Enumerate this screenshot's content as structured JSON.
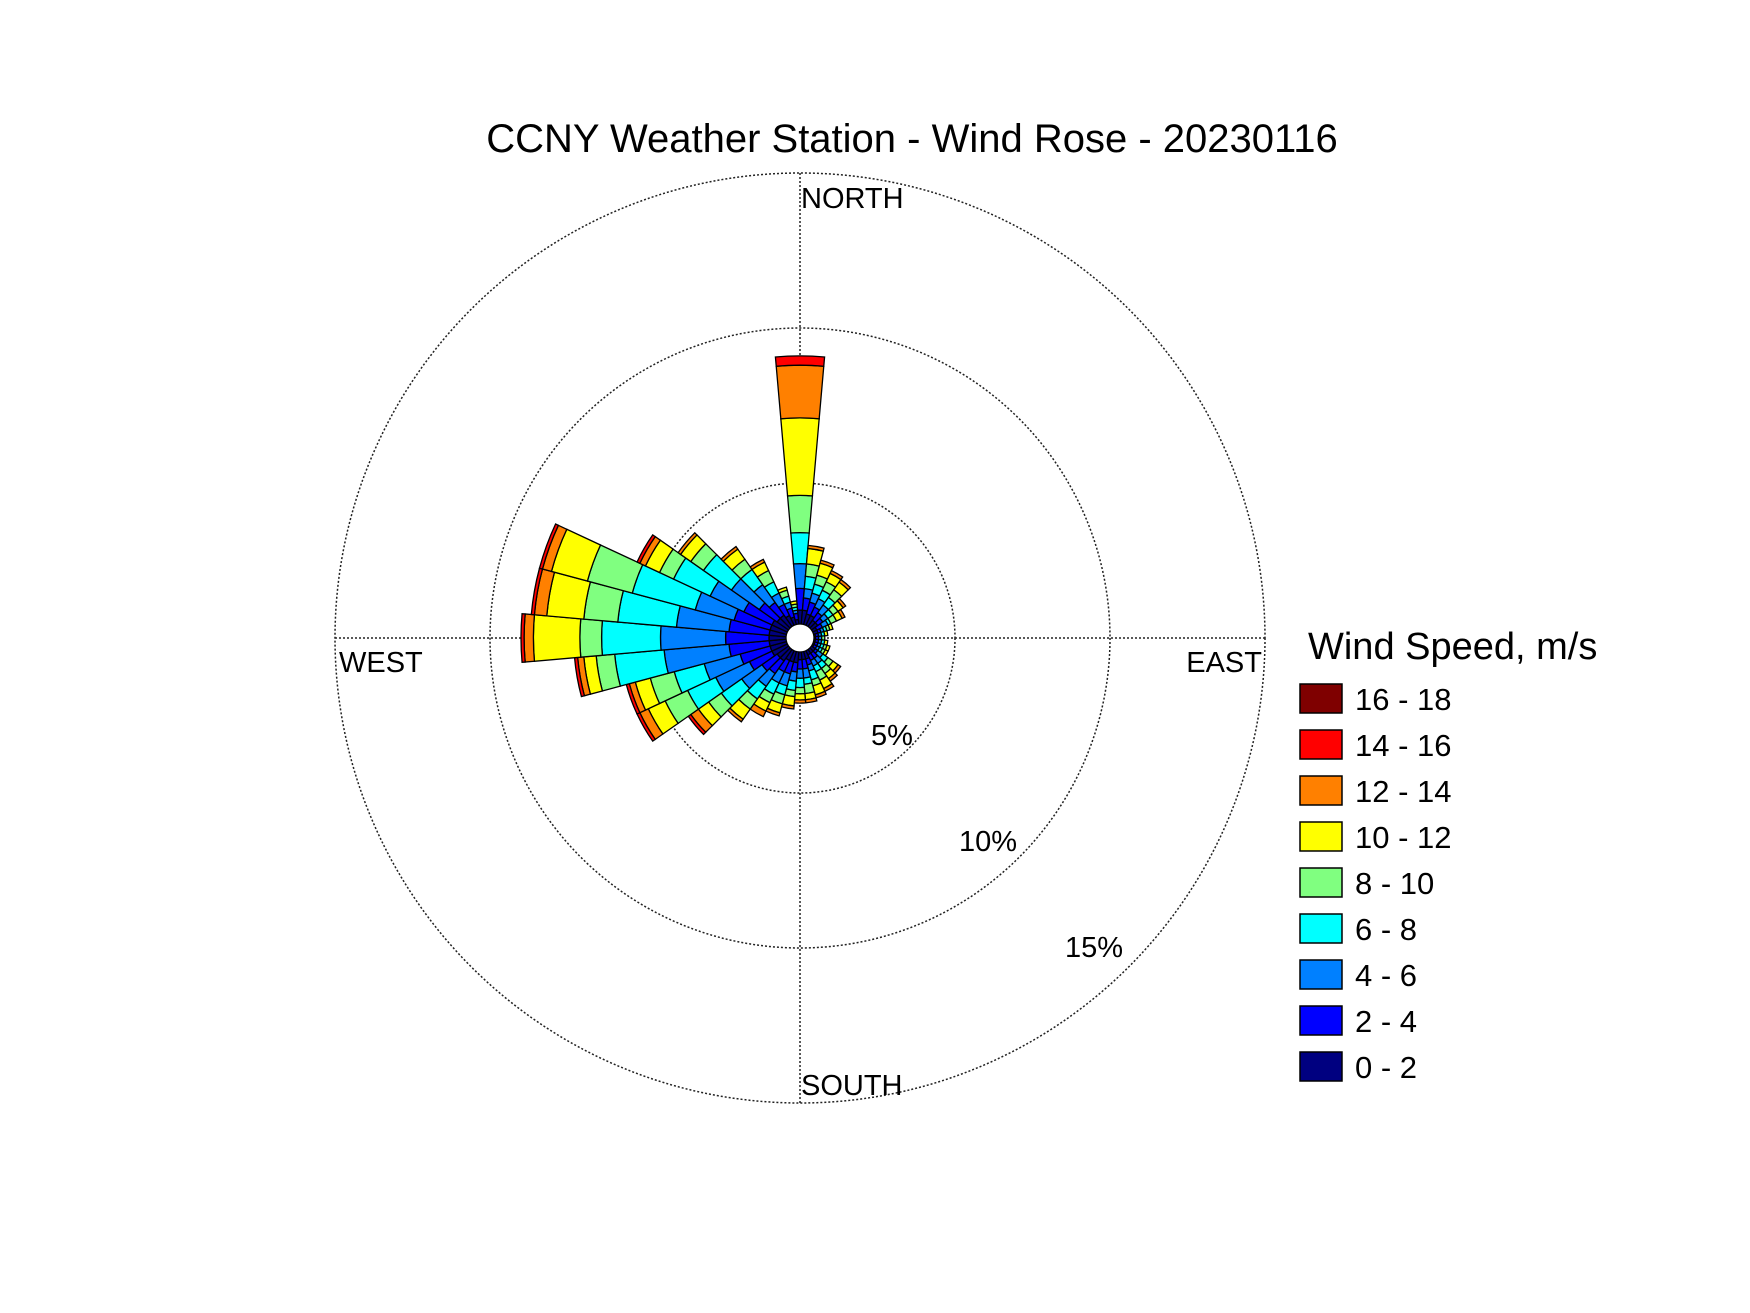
{
  "chart_data": {
    "type": "windrose",
    "title": "CCNY Weather Station - Wind Rose - 20230116",
    "direction_labels": {
      "north": "NORTH",
      "east": "EAST",
      "south": "SOUTH",
      "west": "WEST"
    },
    "radial_unit": "%",
    "radial_ticks": [
      5,
      10,
      15
    ],
    "radial_tick_labels": [
      "5%",
      "10%",
      "15%"
    ],
    "radial_max": 15,
    "hole_fraction": 0.06,
    "sector_width_deg": 10,
    "legend": {
      "title": "Wind Speed, m/s",
      "bins": [
        {
          "label": "16 - 18",
          "color": "#7f0000"
        },
        {
          "label": "14 - 16",
          "color": "#ff0000"
        },
        {
          "label": "12 - 14",
          "color": "#ff8000"
        },
        {
          "label": "10 - 12",
          "color": "#ffff00"
        },
        {
          "label": "8 - 10",
          "color": "#80ff80"
        },
        {
          "label": "6 - 8",
          "color": "#00ffff"
        },
        {
          "label": "4 - 6",
          "color": "#0080ff"
        },
        {
          "label": "2 - 4",
          "color": "#0000ff"
        },
        {
          "label": "0 - 2",
          "color": "#000080"
        }
      ]
    },
    "bin_order_inner_to_outer": [
      "0 - 2",
      "2 - 4",
      "4 - 6",
      "6 - 8",
      "8 - 10",
      "10 - 12",
      "12 - 14",
      "14 - 16",
      "16 - 18"
    ],
    "sectors": [
      {
        "direction_deg": 0,
        "cumulative_pct": [
          0.9,
          1.6,
          2.4,
          3.4,
          4.6,
          7.1,
          8.8,
          9.1,
          9.1
        ]
      },
      {
        "direction_deg": 10,
        "cumulative_pct": [
          0.9,
          1.3,
          1.6,
          2.0,
          2.4,
          2.9,
          3.0,
          3.0,
          3.0
        ]
      },
      {
        "direction_deg": 20,
        "cumulative_pct": [
          0.8,
          1.2,
          1.5,
          1.8,
          2.1,
          2.5,
          2.6,
          2.6,
          2.6
        ]
      },
      {
        "direction_deg": 30,
        "cumulative_pct": [
          0.8,
          1.1,
          1.4,
          1.7,
          2.0,
          2.3,
          2.4,
          2.4,
          2.4
        ]
      },
      {
        "direction_deg": 40,
        "cumulative_pct": [
          0.7,
          1.0,
          1.3,
          1.6,
          1.9,
          2.2,
          2.3,
          2.3,
          2.3
        ]
      },
      {
        "direction_deg": 50,
        "cumulative_pct": [
          0.7,
          0.9,
          1.1,
          1.3,
          1.5,
          1.7,
          1.8,
          1.8,
          1.8
        ]
      },
      {
        "direction_deg": 60,
        "cumulative_pct": [
          0.6,
          0.8,
          1.0,
          1.1,
          1.3,
          1.5,
          1.6,
          1.6,
          1.6
        ]
      },
      {
        "direction_deg": 70,
        "cumulative_pct": [
          0.6,
          0.7,
          0.8,
          0.9,
          1.0,
          1.1,
          1.1,
          1.1,
          1.1
        ]
      },
      {
        "direction_deg": 80,
        "cumulative_pct": [
          0.5,
          0.6,
          0.7,
          0.8,
          0.8,
          0.9,
          0.9,
          0.9,
          0.9
        ]
      },
      {
        "direction_deg": 90,
        "cumulative_pct": [
          0.5,
          0.6,
          0.7,
          0.7,
          0.8,
          0.8,
          0.8,
          0.8,
          0.8
        ]
      },
      {
        "direction_deg": 100,
        "cumulative_pct": [
          0.5,
          0.6,
          0.7,
          0.8,
          0.8,
          0.9,
          0.9,
          0.9,
          0.9
        ]
      },
      {
        "direction_deg": 110,
        "cumulative_pct": [
          0.5,
          0.6,
          0.7,
          0.8,
          0.9,
          1.0,
          1.0,
          1.0,
          1.0
        ]
      },
      {
        "direction_deg": 120,
        "cumulative_pct": [
          0.5,
          0.6,
          0.7,
          0.8,
          0.9,
          1.0,
          1.0,
          1.0,
          1.0
        ]
      },
      {
        "direction_deg": 130,
        "cumulative_pct": [
          0.6,
          0.7,
          0.9,
          1.1,
          1.3,
          1.5,
          1.6,
          1.6,
          1.6
        ]
      },
      {
        "direction_deg": 140,
        "cumulative_pct": [
          0.6,
          0.8,
          1.0,
          1.2,
          1.4,
          1.6,
          1.7,
          1.7,
          1.7
        ]
      },
      {
        "direction_deg": 150,
        "cumulative_pct": [
          0.6,
          0.8,
          1.0,
          1.2,
          1.5,
          1.8,
          1.9,
          1.9,
          1.9
        ]
      },
      {
        "direction_deg": 160,
        "cumulative_pct": [
          0.7,
          0.9,
          1.1,
          1.4,
          1.6,
          1.9,
          2.0,
          2.0,
          2.0
        ]
      },
      {
        "direction_deg": 170,
        "cumulative_pct": [
          0.7,
          1.0,
          1.3,
          1.5,
          1.8,
          2.0,
          2.1,
          2.1,
          2.1
        ]
      },
      {
        "direction_deg": 180,
        "cumulative_pct": [
          0.7,
          1.0,
          1.3,
          1.6,
          1.8,
          2.0,
          2.1,
          2.1,
          2.1
        ]
      },
      {
        "direction_deg": 190,
        "cumulative_pct": [
          0.8,
          1.1,
          1.4,
          1.7,
          1.9,
          2.2,
          2.3,
          2.3,
          2.3
        ]
      },
      {
        "direction_deg": 200,
        "cumulative_pct": [
          0.8,
          1.2,
          1.6,
          1.9,
          2.2,
          2.5,
          2.6,
          2.6,
          2.6
        ]
      },
      {
        "direction_deg": 210,
        "cumulative_pct": [
          0.8,
          1.2,
          1.6,
          2.0,
          2.3,
          2.6,
          2.8,
          2.8,
          2.8
        ]
      },
      {
        "direction_deg": 220,
        "cumulative_pct": [
          0.9,
          1.4,
          1.9,
          2.4,
          2.8,
          3.2,
          3.3,
          3.3,
          3.3
        ]
      },
      {
        "direction_deg": 230,
        "cumulative_pct": [
          0.9,
          1.5,
          2.3,
          3.1,
          3.6,
          4.0,
          4.3,
          4.4,
          4.4
        ]
      },
      {
        "direction_deg": 240,
        "cumulative_pct": [
          1.0,
          1.8,
          3.0,
          4.0,
          4.8,
          5.4,
          5.7,
          5.8,
          5.8
        ]
      },
      {
        "direction_deg": 250,
        "cumulative_pct": [
          1.0,
          2.0,
          3.2,
          4.2,
          5.0,
          5.5,
          5.7,
          5.8,
          5.8
        ]
      },
      {
        "direction_deg": 260,
        "cumulative_pct": [
          1.0,
          2.3,
          4.4,
          6.0,
          6.6,
          7.0,
          7.2,
          7.3,
          7.3
        ]
      },
      {
        "direction_deg": 270,
        "cumulative_pct": [
          1.0,
          2.4,
          4.5,
          6.4,
          7.1,
          8.6,
          8.9,
          9.0,
          9.0
        ]
      },
      {
        "direction_deg": 280,
        "cumulative_pct": [
          1.0,
          2.3,
          4.0,
          5.9,
          7.0,
          8.2,
          8.6,
          8.7,
          8.7
        ]
      },
      {
        "direction_deg": 290,
        "cumulative_pct": [
          1.0,
          2.2,
          3.5,
          5.6,
          7.1,
          8.3,
          8.6,
          8.7,
          8.7
        ]
      },
      {
        "direction_deg": 300,
        "cumulative_pct": [
          1.0,
          2.0,
          3.2,
          4.5,
          5.0,
          5.5,
          5.7,
          5.8,
          5.8
        ]
      },
      {
        "direction_deg": 310,
        "cumulative_pct": [
          0.9,
          1.6,
          2.7,
          3.8,
          4.3,
          4.7,
          4.8,
          4.8,
          4.8
        ]
      },
      {
        "direction_deg": 320,
        "cumulative_pct": [
          0.9,
          1.4,
          2.1,
          2.7,
          3.1,
          3.5,
          3.6,
          3.6,
          3.6
        ]
      },
      {
        "direction_deg": 330,
        "cumulative_pct": [
          0.8,
          1.2,
          1.6,
          2.0,
          2.4,
          2.7,
          2.8,
          2.8,
          2.8
        ]
      },
      {
        "direction_deg": 340,
        "cumulative_pct": [
          0.7,
          1.0,
          1.2,
          1.4,
          1.6,
          1.7,
          1.7,
          1.7,
          1.7
        ]
      },
      {
        "direction_deg": 350,
        "cumulative_pct": [
          0.6,
          0.8,
          0.9,
          1.0,
          1.1,
          1.2,
          1.2,
          1.2,
          1.2
        ]
      }
    ]
  }
}
